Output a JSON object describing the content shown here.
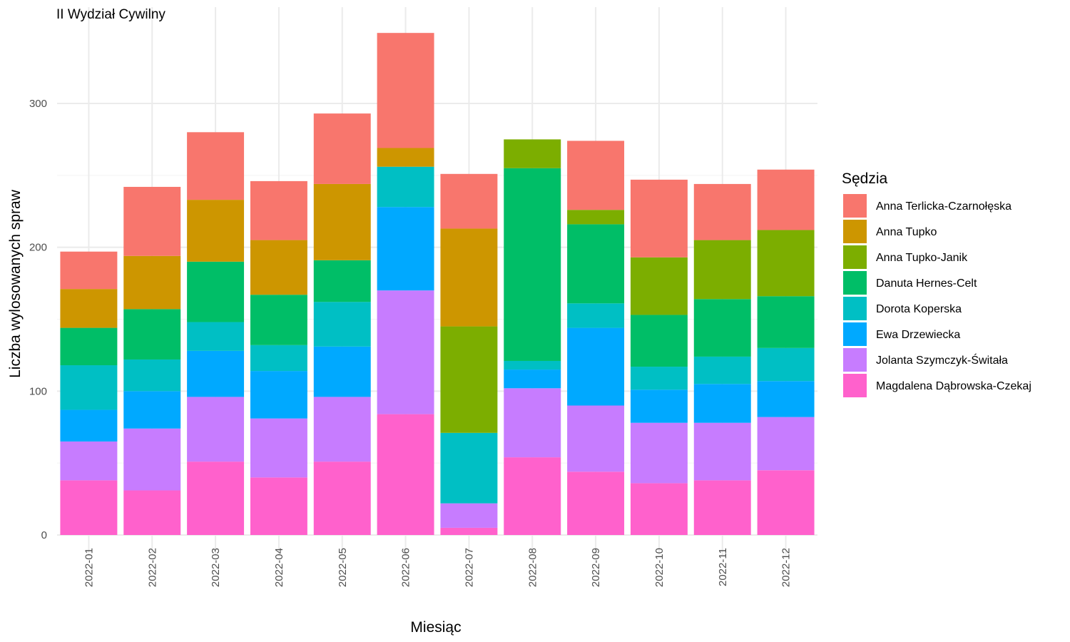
{
  "chart_data": {
    "type": "bar",
    "stacked": true,
    "title": "II Wydział Cywilny",
    "xlabel": "Miesiąc",
    "ylabel": "Liczba wylosowanych spraw",
    "ylim": [
      0,
      350
    ],
    "yticks": [
      0,
      100,
      200,
      300
    ],
    "grid": true,
    "legend_title": "Sędzia",
    "legend_position": "right",
    "categories": [
      "2022-01",
      "2022-02",
      "2022-03",
      "2022-04",
      "2022-05",
      "2022-06",
      "2022-07",
      "2022-08",
      "2022-09",
      "2022-10",
      "2022-11",
      "2022-12"
    ],
    "series": [
      {
        "name": "Magdalena Dąbrowska-Czekaj",
        "color": "#FF61CC",
        "values": [
          38,
          31,
          51,
          40,
          51,
          84,
          5,
          54,
          44,
          36,
          38,
          45
        ]
      },
      {
        "name": "Jolanta Szymczyk-Świtała",
        "color": "#C77CFF",
        "values": [
          27,
          43,
          45,
          41,
          45,
          86,
          17,
          48,
          46,
          42,
          40,
          37
        ]
      },
      {
        "name": "Ewa Drzewiecka",
        "color": "#00A9FF",
        "values": [
          22,
          26,
          32,
          33,
          35,
          58,
          0,
          13,
          54,
          23,
          27,
          25
        ]
      },
      {
        "name": "Dorota Koperska",
        "color": "#00BFC4",
        "values": [
          31,
          22,
          20,
          18,
          31,
          28,
          49,
          6,
          17,
          16,
          19,
          23
        ]
      },
      {
        "name": "Danuta Hernes-Celt",
        "color": "#00BE67",
        "values": [
          26,
          35,
          42,
          35,
          29,
          0,
          0,
          134,
          55,
          36,
          40,
          36
        ]
      },
      {
        "name": "Anna Tupko-Janik",
        "color": "#7CAE00",
        "values": [
          0,
          0,
          0,
          0,
          0,
          0,
          74,
          20,
          10,
          40,
          41,
          46
        ]
      },
      {
        "name": "Anna Tupko",
        "color": "#CD9600",
        "values": [
          27,
          37,
          43,
          38,
          53,
          13,
          68,
          0,
          0,
          0,
          0,
          0
        ]
      },
      {
        "name": "Anna Terlicka-Czarnołęska",
        "color": "#F8766D",
        "values": [
          26,
          48,
          47,
          41,
          49,
          80,
          38,
          0,
          48,
          54,
          39,
          42
        ]
      }
    ],
    "legend_order": [
      "Anna Terlicka-Czarnołęska",
      "Anna Tupko",
      "Anna Tupko-Janik",
      "Danuta Hernes-Celt",
      "Dorota Koperska",
      "Ewa Drzewiecka",
      "Jolanta Szymczyk-Świtała",
      "Magdalena Dąbrowska-Czekaj"
    ]
  }
}
